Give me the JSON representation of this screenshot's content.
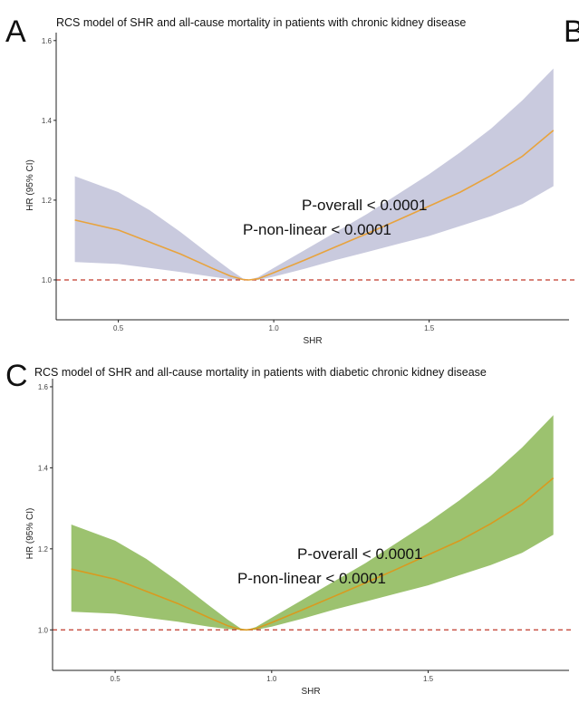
{
  "panels": [
    {
      "letter": "A",
      "title": "RCS model of SHR and all-cause mortality in patients with chronic kidney disease",
      "neighbor_letter": "B"
    },
    {
      "letter": "C",
      "title": "RCS model of SHR and all-cause mortality in patients with diabetic chronic kidney disease",
      "neighbor_letter": ""
    }
  ],
  "chart_data": [
    {
      "type": "line",
      "title": "RCS model of SHR and all-cause mortality in patients with chronic kidney disease",
      "xlabel": "SHR",
      "ylabel": "HR (95% CI)",
      "xlim": [
        0.3,
        1.95
      ],
      "ylim": [
        0.9,
        1.62
      ],
      "x_ticks": [
        0.5,
        1.0,
        1.5
      ],
      "x_tick_labels": [
        "0.5",
        "1.0",
        "1.5"
      ],
      "y_ticks": [
        1.0,
        1.2,
        1.4,
        1.6
      ],
      "y_tick_labels": [
        "1.0",
        "1.2",
        "1.4",
        "1.6"
      ],
      "grid": false,
      "reference_line": 1.0,
      "line_color": "#e8a33d",
      "band_color": "#c9cade",
      "ref_color": "#c0392b",
      "x": [
        0.36,
        0.5,
        0.6,
        0.7,
        0.8,
        0.86,
        0.9,
        0.92,
        0.95,
        1.0,
        1.1,
        1.2,
        1.3,
        1.4,
        1.5,
        1.6,
        1.7,
        1.8,
        1.9
      ],
      "hr": [
        1.15,
        1.125,
        1.095,
        1.065,
        1.03,
        1.01,
        1.001,
        1.0,
        1.003,
        1.018,
        1.05,
        1.083,
        1.116,
        1.15,
        1.185,
        1.22,
        1.262,
        1.31,
        1.375
      ],
      "lower": [
        1.045,
        1.04,
        1.03,
        1.02,
        1.008,
        1.002,
        1.0,
        1.0,
        1.0,
        1.008,
        1.028,
        1.05,
        1.07,
        1.09,
        1.11,
        1.135,
        1.16,
        1.19,
        1.235
      ],
      "upper": [
        1.26,
        1.22,
        1.175,
        1.12,
        1.06,
        1.025,
        1.004,
        1.0,
        1.007,
        1.03,
        1.075,
        1.12,
        1.165,
        1.215,
        1.265,
        1.32,
        1.38,
        1.45,
        1.53
      ],
      "annotations": [
        "P-overall < 0.0001",
        "P-non-linear < 0.0001"
      ]
    },
    {
      "type": "line",
      "title": "RCS model of SHR and all-cause mortality in patients with diabetic chronic kidney disease",
      "xlabel": "SHR",
      "ylabel": "HR (95% CI)",
      "xlim": [
        0.3,
        1.95
      ],
      "ylim": [
        0.9,
        1.62
      ],
      "x_ticks": [
        0.5,
        1.0,
        1.5
      ],
      "x_tick_labels": [
        "0.5",
        "1.0",
        "1.5"
      ],
      "y_ticks": [
        1.0,
        1.2,
        1.4,
        1.6
      ],
      "y_tick_labels": [
        "1.0",
        "1.2",
        "1.4",
        "1.6"
      ],
      "grid": false,
      "reference_line": 1.0,
      "line_color": "#d99a1f",
      "band_color": "#9cc26f",
      "ref_color": "#c0392b",
      "x": [
        0.36,
        0.5,
        0.6,
        0.7,
        0.8,
        0.86,
        0.9,
        0.92,
        0.95,
        1.0,
        1.1,
        1.2,
        1.3,
        1.4,
        1.5,
        1.6,
        1.7,
        1.8,
        1.9
      ],
      "hr": [
        1.15,
        1.125,
        1.095,
        1.065,
        1.03,
        1.01,
        1.001,
        1.0,
        1.003,
        1.018,
        1.05,
        1.083,
        1.116,
        1.15,
        1.185,
        1.22,
        1.262,
        1.31,
        1.375
      ],
      "lower": [
        1.045,
        1.04,
        1.03,
        1.02,
        1.008,
        1.002,
        1.0,
        1.0,
        1.0,
        1.008,
        1.028,
        1.05,
        1.07,
        1.09,
        1.11,
        1.135,
        1.16,
        1.19,
        1.235
      ],
      "upper": [
        1.26,
        1.22,
        1.175,
        1.12,
        1.06,
        1.025,
        1.004,
        1.0,
        1.007,
        1.03,
        1.075,
        1.12,
        1.165,
        1.215,
        1.265,
        1.32,
        1.38,
        1.45,
        1.53
      ],
      "annotations": [
        "P-overall < 0.0001",
        "P-non-linear < 0.0001"
      ]
    }
  ]
}
